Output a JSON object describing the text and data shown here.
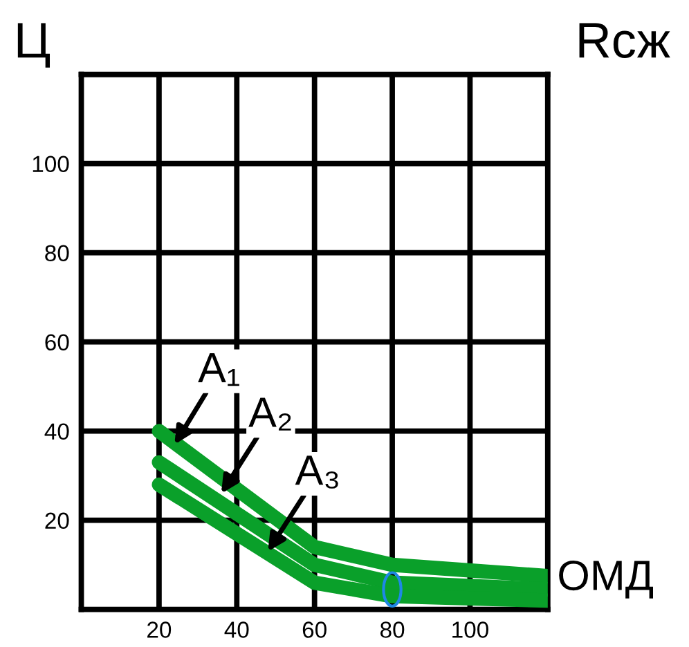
{
  "chart_data": {
    "type": "line",
    "ylabel": "Ц",
    "y2label": "Rсж",
    "xlabel": "ОМД",
    "x": [
      20,
      60,
      80,
      120
    ],
    "series": [
      {
        "color": "#0aa02a",
        "values": [
          40,
          14,
          10,
          7.5
        ]
      },
      {
        "color": "#0aa02a",
        "values": [
          33,
          10,
          6,
          4.5
        ]
      },
      {
        "color": "#0aa02a",
        "values": [
          28,
          6,
          3,
          2
        ]
      }
    ],
    "xlim": [
      0,
      120
    ],
    "ylim": [
      0,
      120
    ],
    "xticks": [
      20,
      40,
      60,
      80,
      100,
      {
        "value": 120,
        "label": null
      }
    ],
    "yticks": [
      20,
      40,
      60,
      80,
      100,
      {
        "value": 120,
        "label": null
      }
    ],
    "grid": true,
    "marker": "none",
    "line_style": "solid",
    "annotations": [
      {
        "text": "A₁",
        "x": 24,
        "y": 37
      },
      {
        "text": "A₂",
        "x": 36,
        "y": 26
      },
      {
        "text": "A₃",
        "x": 48,
        "y": 13
      }
    ]
  }
}
